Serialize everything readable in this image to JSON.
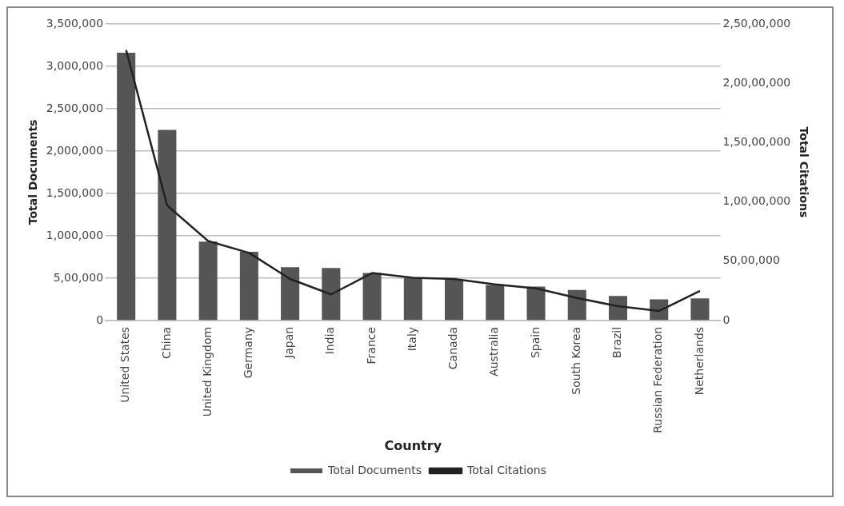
{
  "chart_data": {
    "type": "bar",
    "xlabel": "Country",
    "ylabel": "Total Documents",
    "y2label": "Total Citations",
    "categories": [
      "United States",
      "China",
      "United Kingdom",
      "Germany",
      "Japan",
      "India",
      "France",
      "Italy",
      "Canada",
      "Australia",
      "Spain",
      "South Korea",
      "Brazil",
      "Russian Federation",
      "Netherlands"
    ],
    "series": [
      {
        "name": "Total Documents",
        "color": "#555555",
        "values": [
          3160000,
          2250000,
          930000,
          810000,
          630000,
          620000,
          560000,
          500000,
          480000,
          420000,
          400000,
          360000,
          290000,
          250000,
          260000
        ]
      },
      {
        "name": "Total Citations",
        "type": "line",
        "axis": "y2",
        "color": "#222222",
        "values": [
          22800000,
          9700000,
          6700000,
          5700000,
          3500000,
          2200000,
          4000000,
          3600000,
          3500000,
          3050000,
          2700000,
          1900000,
          1200000,
          800000,
          2500000
        ]
      }
    ],
    "ylim": [
      0,
      3500000
    ],
    "yticks": [
      {
        "value": 0,
        "label": "0"
      },
      {
        "value": 500000,
        "label": "5,00,000"
      },
      {
        "value": 1000000,
        "label": "1,000,000"
      },
      {
        "value": 1500000,
        "label": "1,500,000"
      },
      {
        "value": 2000000,
        "label": "2,000,000"
      },
      {
        "value": 2500000,
        "label": "2,500,000"
      },
      {
        "value": 3000000,
        "label": "3,000,000"
      },
      {
        "value": 3500000,
        "label": "3,500,000"
      }
    ],
    "y2lim": [
      0,
      25000000
    ],
    "y2ticks": [
      {
        "value": 0,
        "label": "0"
      },
      {
        "value": 5000000,
        "label": "50,00,000"
      },
      {
        "value": 10000000,
        "label": "1,00,00,000"
      },
      {
        "value": 15000000,
        "label": "1,50,00,000"
      },
      {
        "value": 20000000,
        "label": "2,00,00,000"
      },
      {
        "value": 25000000,
        "label": "2,50,00,000"
      }
    ],
    "grid": "y",
    "legend": "bottom",
    "marker": "none",
    "line_style": "solid"
  }
}
